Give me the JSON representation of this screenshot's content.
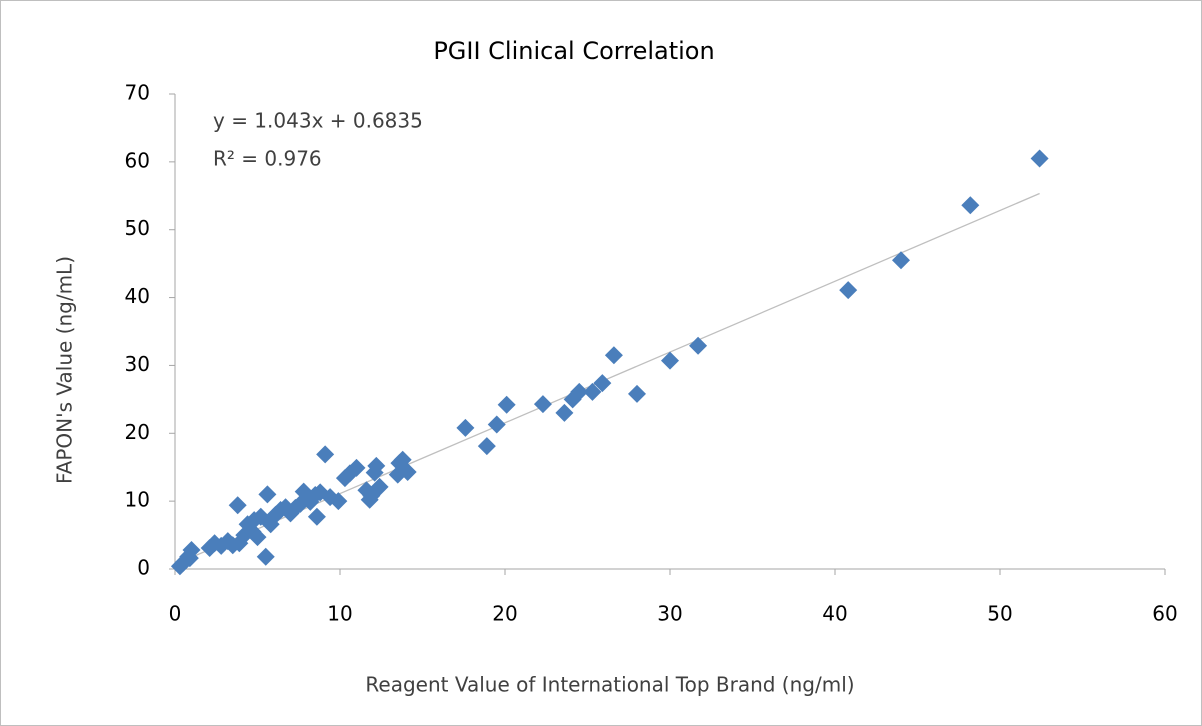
{
  "chart_data": {
    "type": "scatter",
    "title": "PGII Clinical Correlation",
    "xlabel": "Reagent Value of International Top Brand (ng/ml)",
    "ylabel": "FAPON's Value (ng/mL)",
    "annotations": [
      "y = 1.043x + 0.6835",
      "R² = 0.976"
    ],
    "trendline": {
      "slope": 1.043,
      "intercept": 0.6835,
      "color": "#bfbfbf"
    },
    "color": "#4a7ebb",
    "x": [
      0.3,
      0.5,
      0.8,
      1.0,
      0.9,
      2.1,
      2.4,
      2.8,
      3.2,
      3.5,
      3.8,
      3.9,
      4.2,
      4.4,
      4.7,
      4.8,
      5.0,
      5.2,
      5.5,
      5.6,
      5.8,
      6.1,
      6.4,
      6.7,
      7.0,
      7.3,
      7.6,
      7.8,
      8.2,
      8.5,
      8.6,
      8.8,
      9.1,
      9.4,
      9.9,
      10.3,
      10.6,
      11.0,
      11.6,
      11.8,
      11.9,
      12.1,
      12.2,
      12.4,
      13.5,
      13.6,
      13.8,
      14.1,
      17.6,
      18.9,
      19.5,
      20.1,
      22.3,
      23.6,
      24.1,
      24.5,
      25.3,
      25.9,
      26.6,
      28.0,
      30.0,
      31.7,
      40.8,
      44.0,
      48.2,
      52.4
    ],
    "values": [
      0.4,
      0.9,
      1.8,
      2.8,
      1.6,
      3.1,
      3.8,
      3.4,
      4.1,
      3.5,
      9.4,
      3.8,
      5.0,
      6.6,
      5.5,
      7.2,
      4.7,
      7.7,
      1.8,
      11.0,
      6.6,
      8.0,
      8.7,
      9.1,
      8.2,
      9.0,
      9.6,
      11.4,
      9.9,
      10.9,
      7.7,
      11.3,
      16.9,
      10.6,
      10.0,
      13.4,
      14.1,
      14.9,
      11.6,
      10.2,
      10.8,
      14.2,
      15.2,
      12.1,
      13.9,
      15.6,
      16.1,
      14.3,
      20.8,
      18.1,
      21.3,
      24.2,
      24.3,
      23.0,
      25.0,
      26.1,
      26.1,
      27.4,
      31.5,
      25.8,
      30.7,
      32.9,
      41.1,
      45.5,
      53.6,
      60.5
    ],
    "xlim": [
      0,
      60
    ],
    "xticks": [
      0,
      10,
      20,
      30,
      40,
      50,
      60
    ],
    "ylim": [
      0,
      70
    ],
    "yticks": [
      0,
      10,
      20,
      30,
      40,
      50,
      60,
      70
    ],
    "grid": false
  }
}
